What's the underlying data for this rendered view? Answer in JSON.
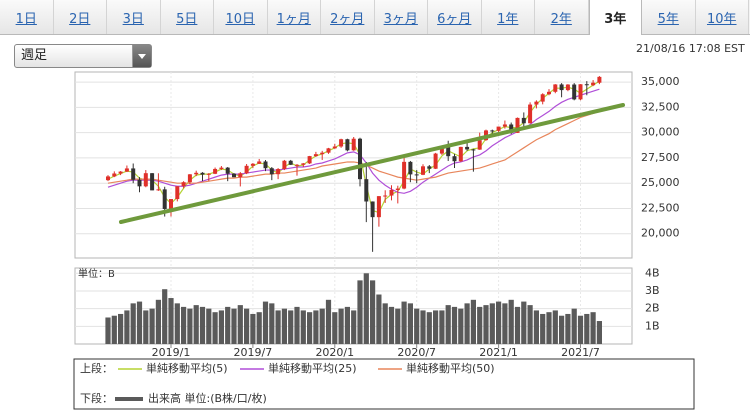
{
  "tabs": [
    "1日",
    "2日",
    "3日",
    "5日",
    "10日",
    "1ヶ月",
    "2ヶ月",
    "3ヶ月",
    "6ヶ月",
    "1年",
    "2年",
    "3年",
    "5年",
    "10年"
  ],
  "active_tab_index": 11,
  "dropdown": "週足",
  "timestamp": "21/08/16 17:08 EST",
  "chart_data": [
    {
      "type": "candlestick",
      "upper_label": "上段：",
      "up_color": "#e0302a",
      "down_color": "#333333",
      "grid": true,
      "ylim": [
        17600,
        36000
      ],
      "yticks": [
        {
          "value": 20000,
          "label": "20,000"
        },
        {
          "value": 22500,
          "label": "22,500"
        },
        {
          "value": 25000,
          "label": "25,000"
        },
        {
          "value": 27500,
          "label": "27,500"
        },
        {
          "value": 30000,
          "label": "30,000"
        },
        {
          "value": 32500,
          "label": "32,500"
        },
        {
          "value": 35000,
          "label": "35,000"
        }
      ],
      "open": [
        25300,
        25670,
        25960,
        26150,
        26460,
        25340,
        24690,
        25990,
        24290,
        24390,
        22450,
        23430,
        24700,
        25100,
        25880,
        26030,
        25850,
        25930,
        26410,
        26540,
        25940,
        25590,
        25980,
        26720,
        26920,
        27150,
        26480,
        25890,
        26400,
        27220,
        26820,
        26820,
        26960,
        27680,
        27870,
        28020,
        28450,
        28630,
        29350,
        28250,
        29400,
        25400,
        23190,
        21640,
        23720,
        23780,
        24330,
        24470,
        27110,
        25870,
        25830,
        26670,
        26430,
        27930,
        28650,
        27670,
        27170,
        28590,
        28340,
        28320,
        29260,
        30220,
        30180,
        30600,
        30810,
        29980,
        31460,
        30930,
        32780,
        33070,
        33800,
        34040,
        34770,
        34210,
        34760,
        33290,
        34790,
        34690,
        34940
      ],
      "high": [
        25800,
        26170,
        26200,
        26750,
        26950,
        25600,
        26300,
        26000,
        25980,
        24650,
        23400,
        24700,
        25200,
        25900,
        26240,
        26100,
        26000,
        26550,
        26700,
        26600,
        26000,
        26100,
        26900,
        27000,
        27400,
        27300,
        26600,
        26500,
        27300,
        27300,
        26900,
        27000,
        27700,
        28100,
        28200,
        28500,
        28900,
        29400,
        29400,
        29570,
        29500,
        27100,
        23200,
        23720,
        24300,
        24800,
        24750,
        27580,
        27200,
        26300,
        26880,
        26800,
        28000,
        28650,
        29200,
        27900,
        28600,
        29000,
        28400,
        30000,
        30300,
        30300,
        30600,
        31200,
        31000,
        31500,
        32000,
        33000,
        33200,
        33900,
        34300,
        34800,
        34900,
        34800,
        34900,
        34800,
        35100,
        35200,
        35600
      ],
      "low": [
        25200,
        25600,
        25800,
        26100,
        25000,
        24100,
        24600,
        24300,
        24240,
        21700,
        21710,
        23200,
        24500,
        24900,
        25700,
        25200,
        25200,
        25900,
        26300,
        25200,
        25600,
        24680,
        25900,
        26500,
        26900,
        26200,
        25300,
        25400,
        26300,
        26800,
        25750,
        26600,
        26900,
        27600,
        27300,
        27900,
        28400,
        28500,
        28150,
        28200,
        24680,
        21150,
        18210,
        20700,
        23050,
        23300,
        23000,
        24400,
        25100,
        25000,
        25800,
        26000,
        26400,
        27800,
        27200,
        26500,
        27100,
        28200,
        26140,
        28300,
        29200,
        29700,
        29900,
        30400,
        29860,
        29960,
        30600,
        30900,
        32400,
        32800,
        33700,
        33900,
        33500,
        34100,
        33200,
        33200,
        33700,
        34600,
        34800
      ],
      "close": [
        25670,
        25960,
        26150,
        26460,
        25340,
        24690,
        25990,
        24290,
        24390,
        22450,
        23430,
        24700,
        25100,
        25880,
        26030,
        25850,
        25930,
        26410,
        26540,
        25940,
        25590,
        25980,
        26720,
        26920,
        27150,
        26480,
        25890,
        26400,
        27220,
        26820,
        26820,
        26960,
        27680,
        27870,
        28020,
        28450,
        28630,
        29350,
        28250,
        29400,
        25400,
        23190,
        21640,
        23720,
        23780,
        24330,
        24470,
        27110,
        25870,
        25830,
        26670,
        26430,
        27930,
        28650,
        27670,
        27170,
        28590,
        28340,
        28320,
        29260,
        30220,
        30180,
        30600,
        30810,
        29980,
        31460,
        30930,
        32780,
        33070,
        33800,
        34040,
        34770,
        34210,
        34760,
        33290,
        34790,
        34690,
        34940,
        35520
      ],
      "series": [
        {
          "name": "単純移動平均(5)",
          "color": "#b5d334",
          "values": [
            25400,
            25700,
            25950,
            26200,
            26100,
            25500,
            25300,
            25300,
            24700,
            23600,
            23000,
            23600,
            24500,
            25300,
            25800,
            25900,
            25900,
            26100,
            26400,
            26300,
            25900,
            25700,
            26100,
            26700,
            27000,
            26900,
            26300,
            26000,
            26600,
            27000,
            26700,
            26800,
            27300,
            27700,
            27900,
            28200,
            28500,
            28900,
            29000,
            28900,
            27800,
            24800,
            22300,
            22100,
            23400,
            23900,
            24200,
            25200,
            26400,
            26100,
            25900,
            26400,
            26800,
            27700,
            28200,
            27900,
            27600,
            28200,
            28400,
            28500,
            29400,
            30000,
            30300,
            30600,
            30500,
            30500,
            31000,
            32000,
            32800,
            33400,
            33900,
            34400,
            34400,
            34500,
            34300,
            33900,
            34300,
            34700,
            35100
          ]
        },
        {
          "name": "単純移動平均(25)",
          "color": "#b04fd8",
          "values": [
            24600,
            24800,
            25000,
            25200,
            25300,
            25300,
            25300,
            25300,
            25200,
            25000,
            24800,
            24700,
            24700,
            24800,
            25000,
            25200,
            25400,
            25600,
            25800,
            25900,
            25900,
            25900,
            26000,
            26100,
            26200,
            26300,
            26300,
            26300,
            26400,
            26500,
            26600,
            26600,
            26700,
            26900,
            27000,
            27200,
            27400,
            27700,
            28000,
            28100,
            27800,
            27000,
            26000,
            25300,
            24800,
            24400,
            24100,
            24000,
            24200,
            24600,
            25100,
            25500,
            25900,
            26300,
            26700,
            27000,
            27100,
            27300,
            27600,
            27800,
            28200,
            28700,
            29100,
            29500,
            29800,
            30100,
            30400,
            30800,
            31300,
            31700,
            32100,
            32600,
            33000,
            33300,
            33500,
            33700,
            33900,
            34100,
            34300
          ]
        },
        {
          "name": "単純移動平均(50)",
          "color": "#e8865c",
          "values": [
            25000,
            25100,
            25200,
            25300,
            25400,
            25400,
            25400,
            25400,
            25300,
            25200,
            25100,
            25000,
            25000,
            25000,
            25000,
            25100,
            25200,
            25300,
            25400,
            25500,
            25500,
            25600,
            25600,
            25700,
            25800,
            25900,
            25900,
            26000,
            26000,
            26100,
            26200,
            26300,
            26400,
            26500,
            26700,
            26800,
            26900,
            27000,
            27100,
            27100,
            27000,
            26800,
            26500,
            26200,
            26000,
            25800,
            25600,
            25500,
            25400,
            25300,
            25400,
            25500,
            25600,
            25800,
            26000,
            26100,
            26200,
            26300,
            26400,
            26500,
            26700,
            26900,
            27100,
            27300,
            27700,
            28100,
            28500,
            28900,
            29300,
            29600,
            29900,
            30300,
            30600,
            30900,
            31200,
            31500,
            31700,
            31900,
            32100
          ]
        }
      ]
    },
    {
      "type": "bar",
      "unit_label": "単位：B",
      "lower_label": "下段：",
      "grid": true,
      "categories": [
        null,
        null,
        null,
        null,
        null,
        null,
        null,
        null,
        null,
        null,
        "2019/1",
        null,
        null,
        null,
        null,
        null,
        null,
        null,
        null,
        null,
        null,
        null,
        null,
        "2019/7",
        null,
        null,
        null,
        null,
        null,
        null,
        null,
        null,
        null,
        null,
        null,
        null,
        "2020/1",
        null,
        null,
        null,
        null,
        null,
        null,
        null,
        null,
        null,
        null,
        null,
        null,
        "2020/7",
        null,
        null,
        null,
        null,
        null,
        null,
        null,
        null,
        null,
        null,
        null,
        null,
        "2021/1",
        null,
        null,
        null,
        null,
        null,
        null,
        null,
        null,
        null,
        null,
        null,
        null,
        "2021/7",
        null,
        null,
        null
      ],
      "ylim": [
        0,
        4.3
      ],
      "yticks": [
        {
          "value": 1,
          "label": "1B"
        },
        {
          "value": 2,
          "label": "2B"
        },
        {
          "value": 3,
          "label": "3B"
        },
        {
          "value": 4,
          "label": "4B"
        }
      ],
      "series": [
        {
          "name": "出来高 単位:(B株/口/枚)",
          "color": "#5a5a5a",
          "values": [
            1.5,
            1.6,
            1.7,
            1.9,
            2.3,
            2.4,
            1.9,
            2.0,
            2.5,
            3.1,
            2.6,
            2.3,
            2.1,
            2.0,
            2.2,
            2.1,
            2.0,
            1.8,
            1.9,
            2.1,
            2.0,
            2.2,
            2.0,
            1.7,
            1.8,
            2.4,
            2.3,
            1.9,
            2.0,
            1.9,
            2.1,
            1.9,
            1.8,
            1.9,
            2.0,
            2.5,
            1.8,
            2.0,
            2.1,
            1.9,
            3.6,
            4.0,
            3.6,
            2.8,
            2.3,
            2.1,
            2.0,
            2.4,
            2.3,
            2.0,
            1.9,
            1.8,
            1.9,
            1.9,
            2.2,
            2.1,
            2.0,
            2.3,
            2.5,
            2.1,
            2.2,
            2.3,
            2.4,
            2.3,
            2.5,
            2.1,
            2.4,
            2.2,
            1.9,
            1.7,
            1.8,
            1.9,
            1.6,
            1.7,
            2.0,
            1.6,
            1.7,
            1.8,
            1.3
          ]
        }
      ]
    }
  ]
}
